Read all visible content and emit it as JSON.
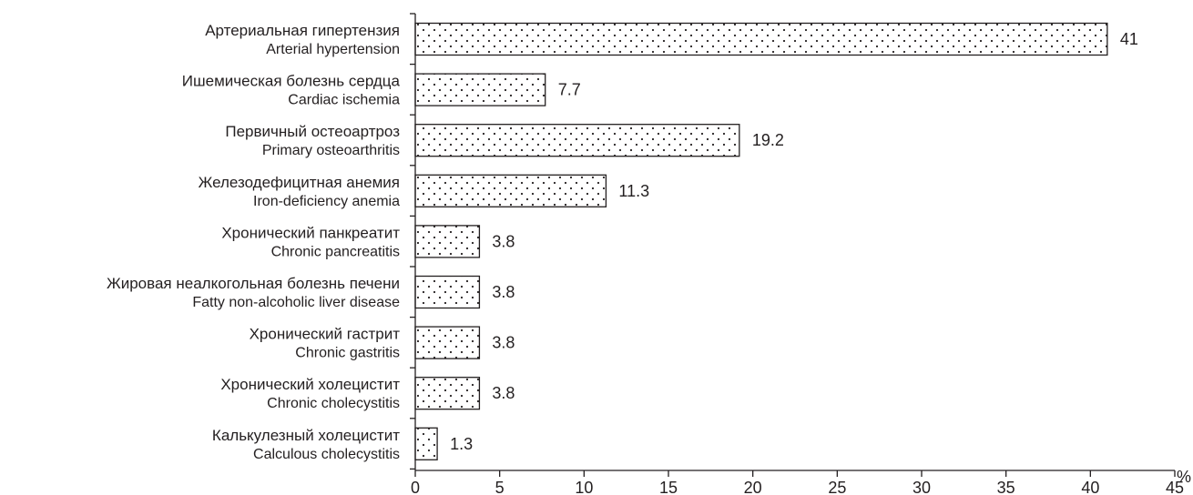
{
  "chart_data": {
    "type": "bar",
    "orientation": "horizontal",
    "categories": [
      {
        "ru": "Артериальная гипертензия",
        "en": "Arterial hypertension"
      },
      {
        "ru": "Ишемическая болезнь сердца",
        "en": "Cardiac ischemia"
      },
      {
        "ru": "Первичный остеоартроз",
        "en": "Primary osteoarthritis"
      },
      {
        "ru": "Железодефицитная анемия",
        "en": "Iron-deficiency anemia"
      },
      {
        "ru": "Хронический панкреатит",
        "en": "Chronic pancreatitis"
      },
      {
        "ru": "Жировая неалкогольная болезнь печени",
        "en": "Fatty non-alcoholic liver disease"
      },
      {
        "ru": "Хронический гастрит",
        "en": "Chronic gastritis"
      },
      {
        "ru": "Хронический холецистит",
        "en": "Chronic cholecystitis"
      },
      {
        "ru": "Калькулезный холецистит",
        "en": "Calculous cholecystitis"
      }
    ],
    "values": [
      41,
      7.7,
      19.2,
      11.3,
      3.8,
      3.8,
      3.8,
      3.8,
      1.3
    ],
    "value_labels": [
      "41",
      "7.7",
      "19.2",
      "11.3",
      "3.8",
      "3.8",
      "3.8",
      "3.8",
      "1.3"
    ],
    "x_unit": "%",
    "xlim": [
      0,
      45
    ],
    "x_ticks": [
      0,
      5,
      10,
      15,
      20,
      25,
      30,
      35,
      40,
      45
    ],
    "grid": false,
    "bar_fill": "dotted pattern",
    "colors": {
      "bar_stroke": "#231f20",
      "dots": "#231f20",
      "text": "#231f20"
    }
  }
}
